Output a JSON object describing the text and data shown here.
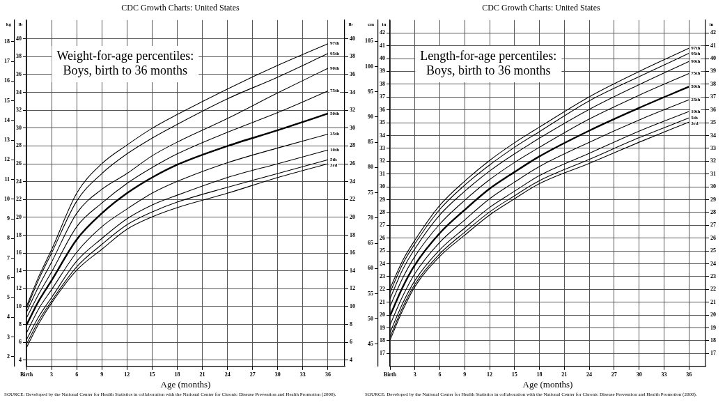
{
  "chart_data": [
    {
      "type": "line",
      "title": "CDC Growth Charts: United States",
      "subtitle": "Weight-for-age percentiles:\nBoys, birth to 36 months",
      "xlabel": "Age (months)",
      "ylabel": "kg",
      "y2label": "lb",
      "y3label": "lb",
      "x": [
        0,
        1.5,
        3,
        6,
        9,
        12,
        15,
        18,
        24,
        30,
        36
      ],
      "xlim": [
        0,
        38
      ],
      "xticks": [
        {
          "value": 0,
          "label": "Birth"
        },
        3,
        6,
        9,
        12,
        15,
        18,
        21,
        24,
        27,
        30,
        33,
        36
      ],
      "ylim": [
        1.5,
        19.1
      ],
      "yticks": [
        2,
        3,
        4,
        5,
        6,
        7,
        8,
        9,
        10,
        11,
        12,
        13,
        14,
        15,
        16,
        17,
        18
      ],
      "y2lim": [
        3.3,
        42.1
      ],
      "y2ticks": [
        4,
        6,
        8,
        10,
        12,
        14,
        16,
        18,
        20,
        22,
        24,
        26,
        28,
        30,
        32,
        34,
        36,
        38,
        40
      ],
      "y3lim": [
        3.3,
        42.1
      ],
      "y3ticks": [
        4,
        6,
        8,
        10,
        12,
        14,
        16,
        18,
        20,
        22,
        24,
        26,
        28,
        30,
        32,
        34,
        36,
        38,
        40
      ],
      "grid": true,
      "marker": "none",
      "line_style": "solid",
      "series": [
        {
          "name": "97th",
          "color": "#000000",
          "values": [
            4.54,
            6.1,
            7.43,
            10.3,
            11.8,
            12.75,
            13.6,
            14.3,
            15.6,
            16.8,
            17.9
          ]
        },
        {
          "name": "95th",
          "color": "#000000",
          "values": [
            4.42,
            5.95,
            7.26,
            9.9,
            11.3,
            12.3,
            13.1,
            13.8,
            15.1,
            16.2,
            17.4
          ]
        },
        {
          "name": "90th",
          "color": "#000000",
          "values": [
            4.25,
            5.6,
            6.8,
            9.28,
            10.5,
            11.3,
            12.2,
            12.9,
            14.1,
            15.4,
            16.65
          ]
        },
        {
          "name": "75th",
          "color": "#000000",
          "values": [
            3.96,
            5.2,
            6.3,
            8.6,
            9.8,
            10.8,
            11.6,
            12.3,
            13.4,
            14.4,
            15.5
          ]
        },
        {
          "name": "50th",
          "color": "#000000",
          "values": [
            3.6,
            4.85,
            5.87,
            7.95,
            9.28,
            10.3,
            11.1,
            11.75,
            12.7,
            13.5,
            14.35
          ]
        },
        {
          "name": "25th",
          "color": "#000000",
          "values": [
            3.2,
            4.45,
            5.4,
            7.3,
            8.6,
            9.5,
            10.3,
            10.9,
            11.85,
            12.6,
            13.3
          ]
        },
        {
          "name": "10th",
          "color": "#000000",
          "values": [
            2.86,
            4.05,
            5.0,
            6.85,
            8.0,
            9.0,
            9.7,
            10.2,
            11.1,
            11.8,
            12.5
          ]
        },
        {
          "name": "5th",
          "color": "#000000",
          "values": [
            2.63,
            3.85,
            4.83,
            6.56,
            7.7,
            8.7,
            9.35,
            9.85,
            10.6,
            11.3,
            12.0
          ]
        },
        {
          "name": "3rd",
          "color": "#000000",
          "values": [
            2.45,
            3.7,
            4.72,
            6.39,
            7.45,
            8.47,
            9.1,
            9.57,
            10.3,
            11.1,
            11.8
          ]
        }
      ],
      "annotations": [
        "SOURCE: Developed by the National Center for Health Statistics in collaboration with the National Center for Chronic Disease Prevention and Health Promotion (2000)."
      ]
    },
    {
      "type": "line",
      "title": "CDC Growth Charts: United States",
      "subtitle": "Length-for-age percentiles:\nBoys, birth to 36 months",
      "xlabel": "Age (months)",
      "ylabel": "cm",
      "y2label": "in",
      "y3label": "in",
      "x": [
        0,
        1.5,
        3,
        6,
        9,
        12,
        15,
        18,
        24,
        30,
        36
      ],
      "xlim": [
        0,
        38
      ],
      "xticks": [
        {
          "value": 0,
          "label": "Birth"
        },
        3,
        6,
        9,
        12,
        15,
        18,
        21,
        24,
        27,
        30,
        33,
        36
      ],
      "ylim": [
        40.6,
        109.2
      ],
      "yticks": [
        45,
        50,
        55,
        60,
        65,
        70,
        75,
        80,
        85,
        90,
        95,
        100,
        105
      ],
      "y2lim": [
        16,
        43
      ],
      "y2ticks": [
        17,
        18,
        19,
        20,
        21,
        22,
        23,
        24,
        25,
        26,
        27,
        28,
        29,
        30,
        31,
        32,
        33,
        34,
        35,
        36,
        37,
        38,
        39,
        40,
        41,
        42
      ],
      "y3lim": [
        16,
        43
      ],
      "y3ticks": [
        17,
        18,
        19,
        20,
        21,
        22,
        23,
        24,
        25,
        26,
        27,
        28,
        29,
        30,
        31,
        32,
        33,
        34,
        35,
        36,
        37,
        38,
        39,
        40,
        41,
        42
      ],
      "grid": true,
      "marker": "none",
      "line_style": "solid",
      "series": [
        {
          "name": "97th",
          "color": "#000000",
          "values": [
            56.0,
            61.5,
            65.6,
            72.5,
            77.3,
            81.4,
            84.9,
            88.0,
            94.0,
            99.0,
            103.6
          ]
        },
        {
          "name": "95th",
          "color": "#000000",
          "values": [
            55.2,
            60.8,
            64.9,
            71.7,
            76.5,
            80.5,
            84.0,
            87.1,
            93.2,
            98.0,
            102.6
          ]
        },
        {
          "name": "90th",
          "color": "#000000",
          "values": [
            54.0,
            59.7,
            63.9,
            70.6,
            75.3,
            79.3,
            82.7,
            85.8,
            91.5,
            96.4,
            101.0
          ]
        },
        {
          "name": "75th",
          "color": "#000000",
          "values": [
            52.5,
            58.0,
            62.4,
            68.8,
            73.5,
            77.6,
            81.0,
            84.0,
            89.6,
            94.3,
            98.6
          ]
        },
        {
          "name": "50th",
          "color": "#000000",
          "values": [
            50.6,
            56.2,
            60.7,
            67.0,
            71.6,
            75.8,
            79.1,
            82.2,
            87.3,
            91.8,
            96.0
          ]
        },
        {
          "name": "25th",
          "color": "#000000",
          "values": [
            48.8,
            54.4,
            59.0,
            65.2,
            69.6,
            73.8,
            77.1,
            80.2,
            85.0,
            89.4,
            93.4
          ]
        },
        {
          "name": "10th",
          "color": "#000000",
          "values": [
            47.3,
            53.0,
            57.6,
            63.7,
            68.0,
            72.1,
            75.3,
            78.4,
            82.8,
            87.2,
            91.1
          ]
        },
        {
          "name": "5th",
          "color": "#000000",
          "values": [
            46.4,
            52.2,
            56.9,
            62.9,
            67.2,
            71.2,
            74.4,
            77.4,
            81.6,
            85.9,
            89.8
          ]
        },
        {
          "name": "3rd",
          "color": "#000000",
          "values": [
            45.8,
            51.6,
            56.4,
            62.4,
            66.6,
            70.6,
            73.8,
            76.8,
            80.8,
            85.0,
            89.0
          ]
        }
      ],
      "annotations": [
        "SOURCE: Developed by the National Center for Health Statistics in collaboration with the National Center for Chronic Disease Prevention and Health Promotion (2000)."
      ]
    }
  ]
}
